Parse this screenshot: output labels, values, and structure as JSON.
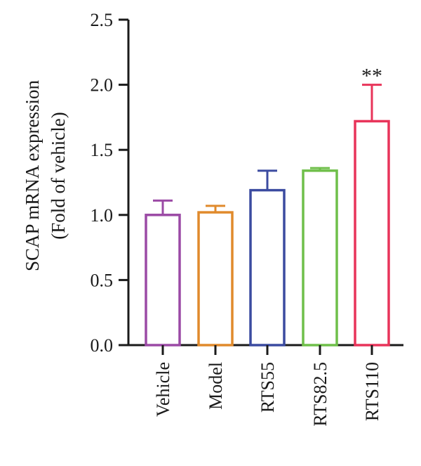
{
  "chart_data": {
    "type": "bar",
    "ylabel_line1": "SCAP mRNA expression",
    "ylabel_line2": "(Fold of vehicle)",
    "ylim": [
      0,
      2.5
    ],
    "yticks": [
      "0.0",
      "0.5",
      "1.0",
      "1.5",
      "2.0",
      "2.5"
    ],
    "ytick_values": [
      0,
      0.5,
      1.0,
      1.5,
      2.0,
      2.5
    ],
    "categories": [
      "Vehicle",
      "Model",
      "RTS55",
      "RTS82.5",
      "RTS110"
    ],
    "values": [
      1.0,
      1.02,
      1.19,
      1.34,
      1.72
    ],
    "errors": [
      0.11,
      0.05,
      0.15,
      0.02,
      0.28
    ],
    "colors": [
      "#9b4aa5",
      "#e08a2c",
      "#3b4ba0",
      "#6fbf4a",
      "#e8345a"
    ],
    "annotations": [
      {
        "category": "RTS110",
        "text": "**"
      }
    ],
    "legend": "none",
    "grid": false
  }
}
